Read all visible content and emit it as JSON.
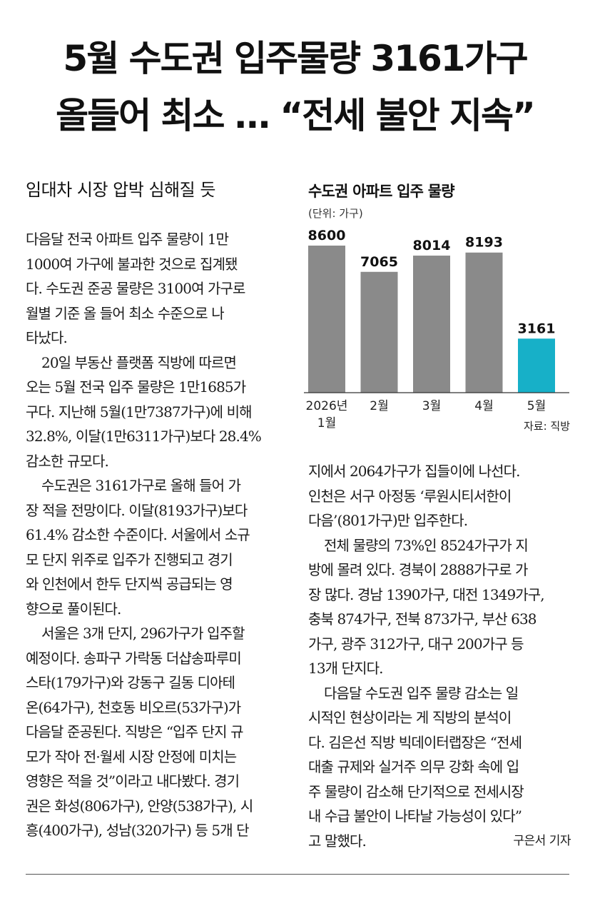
{
  "headline": {
    "line1": "5월 수도권 입주물량 3161가구",
    "line2": "올들어 최소 … “전세 불안 지속”"
  },
  "subhead": "임대차 시장 압박 심해질 듯",
  "article": {
    "left_paragraphs": [
      [
        "다음달 전국 아파트 입주 물량이 1만",
        "1000여 가구에 불과한 것으로 집계됐",
        "다. 수도권 준공 물량은 3100여 가구로",
        "월별 기준 올 들어 최소 수준으로 나",
        "타났다."
      ],
      [
        "20일 부동산 플랫폼 직방에 따르면",
        "오는 5월 전국 입주 물량은 1만1685가",
        "구다. 지난해 5월(1만7387가구)에 비해",
        "32.8%, 이달(1만6311가구)보다 28.4%",
        "감소한 규모다."
      ],
      [
        "수도권은 3161가구로 올해 들어 가",
        "장 적을 전망이다. 이달(8193가구)보다",
        "61.4% 감소한 수준이다. 서울에서 소규",
        "모 단지 위주로 입주가 진행되고 경기",
        "와 인천에서 한두 단지씩 공급되는 영",
        "향으로 풀이된다."
      ],
      [
        "서울은 3개 단지, 296가구가 입주할",
        "예정이다. 송파구 가락동 더샵송파루미",
        "스타(179가구)와 강동구 길동 디아테",
        "온(64가구), 천호동 비오르(53가구)가",
        "다음달 준공된다. 직방은 “입주 단지 규",
        "모가 작아 전·월세 시장 안정에 미치는",
        "영향은 적을 것”이라고 내다봤다. 경기",
        "권은 화성(806가구), 안양(538가구), 시",
        "흥(400가구), 성남(320가구) 등 5개 단"
      ]
    ],
    "right_paragraphs": [
      [
        "지에서 2064가구가 집들이에 나선다.",
        "인천은 서구 아정동 ‘루원시티서한이",
        "다음’(801가구)만 입주한다."
      ],
      [
        "전체 물량의 73%인 8524가구가 지",
        "방에 몰려 있다. 경북이 2888가구로 가",
        "장 많다. 경남 1390가구, 대전 1349가구,",
        "충북 874가구, 전북 873가구, 부산 638",
        "가구, 광주 312가구, 대구 200가구 등",
        "13개 단지다."
      ],
      [
        "다음달 수도권 입주 물량 감소는 일",
        "시적인 현상이라는 게 직방의 분석이",
        "다. 김은선 직방 빅데이터랩장은 “전세",
        "대출 규제와 실거주 의무 강화 속에 입",
        "주 물량이 감소해 단기적으로 전세시장",
        "내 수급 불안이 나타날 가능성이 있다”",
        "고 말했다."
      ]
    ],
    "byline": "구은서 기자"
  },
  "chart": {
    "title": "수도권 아파트 입주 물량",
    "unit": "(단위: 가구)",
    "source": "자료: 직방"
  },
  "chart_data": {
    "type": "bar",
    "categories": [
      [
        "2026년",
        "1월"
      ],
      [
        "2월"
      ],
      [
        "3월"
      ],
      [
        "4월"
      ],
      [
        "5월"
      ]
    ],
    "values": [
      8600,
      7065,
      8014,
      8193,
      3161
    ],
    "value_labels": [
      "8600",
      "7065",
      "8014",
      "8193",
      "3161"
    ],
    "title": "수도권 아파트 입주 물량",
    "ylabel": "(단위: 가구)",
    "ylim": [
      0,
      9000
    ],
    "grid": false,
    "colors": [
      "#8a8a8a",
      "#8a8a8a",
      "#8a8a8a",
      "#8a8a8a",
      "#17b0c8"
    ],
    "highlight_index": 4
  }
}
